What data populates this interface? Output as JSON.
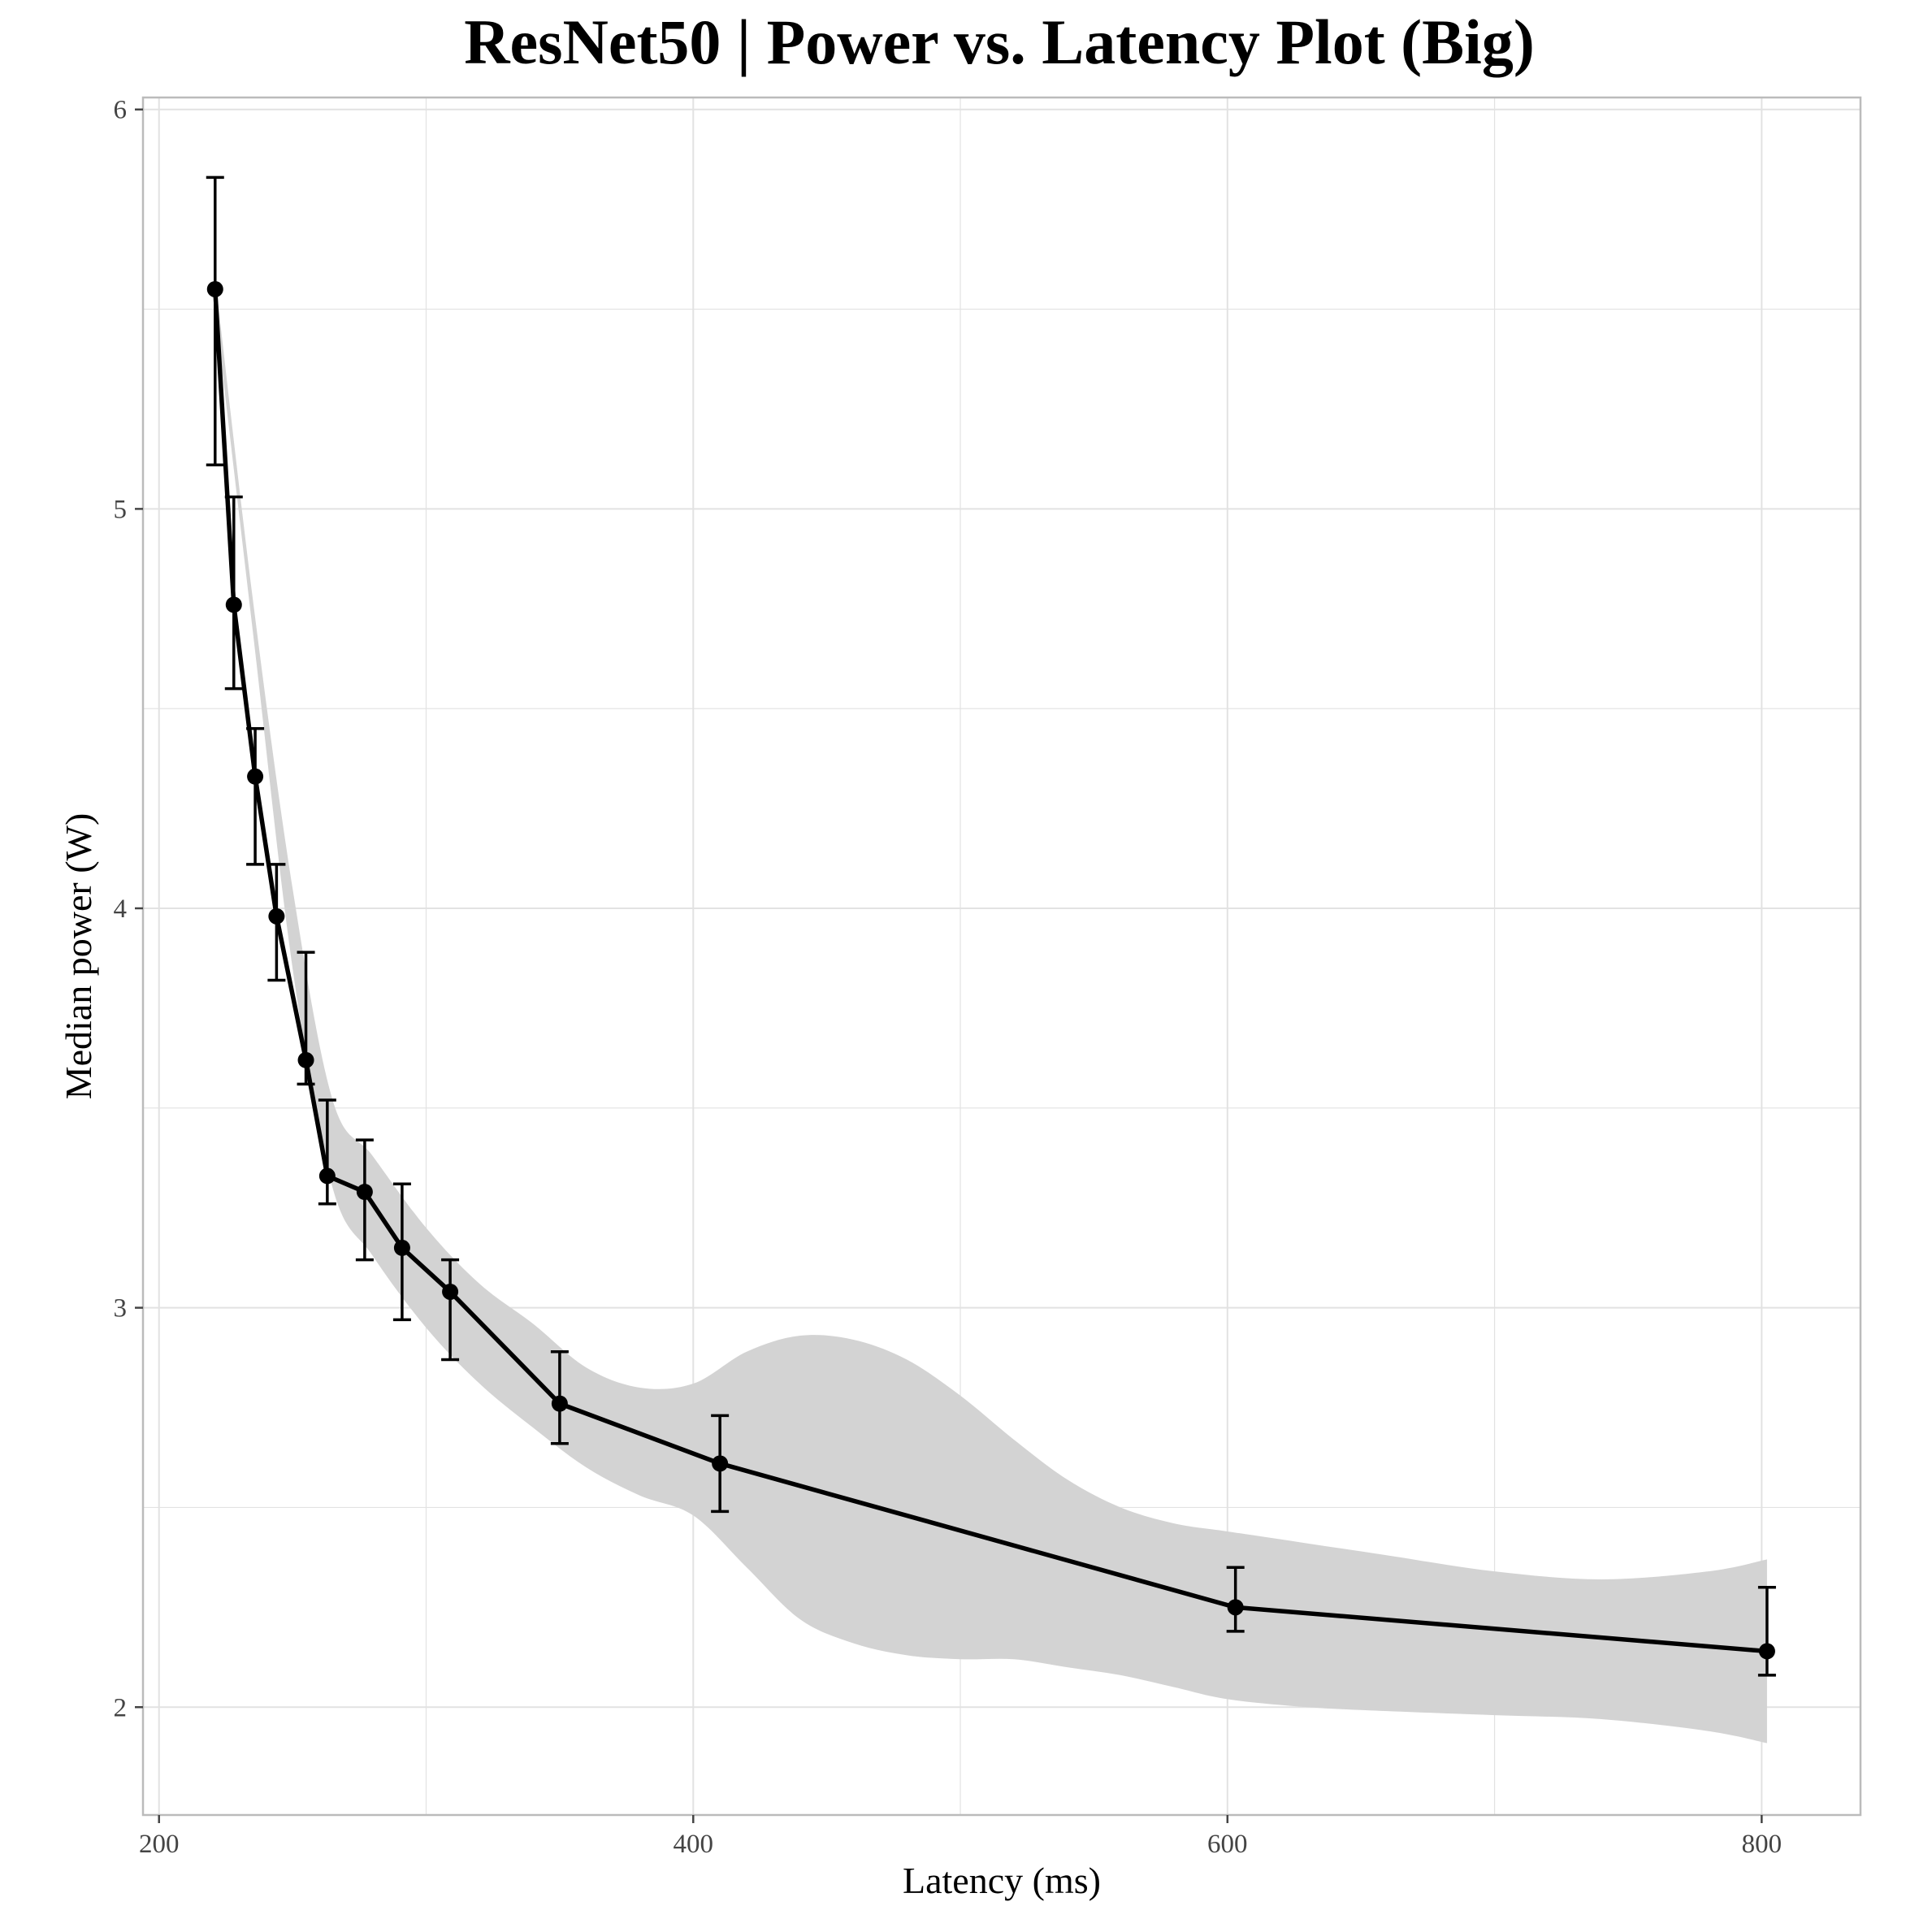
{
  "chart_data": {
    "type": "line",
    "title": "ResNet50 | Power vs. Latency Plot (Big)",
    "xlabel": "Latency (ms)",
    "ylabel": "Median power (W)",
    "xlim": [
      194,
      837
    ],
    "ylim": [
      1.73,
      6.03
    ],
    "x_ticks": [
      200,
      400,
      600,
      800
    ],
    "y_ticks": [
      2,
      3,
      4,
      5,
      6
    ],
    "x_tick_labels": [
      "200",
      "400",
      "600",
      "800"
    ],
    "y_tick_labels": [
      "2",
      "3",
      "4",
      "5",
      "6"
    ],
    "grid": true,
    "legend": "none",
    "colors": {
      "line": "#000000",
      "ribbon": "#d3d3d3",
      "grid": "#e2e2e2",
      "frame": "#bbbbbb"
    },
    "series": [
      {
        "points": [
          {
            "x": 221,
            "y": 5.55,
            "ymin": 5.11,
            "ymax": 5.83
          },
          {
            "x": 228,
            "y": 4.76,
            "ymin": 4.55,
            "ymax": 5.03
          },
          {
            "x": 236,
            "y": 4.33,
            "ymin": 4.11,
            "ymax": 4.45
          },
          {
            "x": 244,
            "y": 3.98,
            "ymin": 3.82,
            "ymax": 4.11
          },
          {
            "x": 255,
            "y": 3.62,
            "ymin": 3.56,
            "ymax": 3.89
          },
          {
            "x": 263,
            "y": 3.33,
            "ymin": 3.26,
            "ymax": 3.52
          },
          {
            "x": 277,
            "y": 3.29,
            "ymin": 3.12,
            "ymax": 3.42
          },
          {
            "x": 291,
            "y": 3.15,
            "ymin": 2.97,
            "ymax": 3.31
          },
          {
            "x": 309,
            "y": 3.04,
            "ymin": 2.87,
            "ymax": 3.12
          },
          {
            "x": 350,
            "y": 2.76,
            "ymin": 2.66,
            "ymax": 2.89
          },
          {
            "x": 410,
            "y": 2.61,
            "ymin": 2.49,
            "ymax": 2.73
          },
          {
            "x": 603,
            "y": 2.25,
            "ymin": 2.19,
            "ymax": 2.35
          },
          {
            "x": 802,
            "y": 2.14,
            "ymin": 2.08,
            "ymax": 2.3
          }
        ],
        "smooth_band": {
          "x": [
            221,
            235,
            250,
            265,
            280,
            300,
            320,
            340,
            360,
            380,
            400,
            420,
            440,
            460,
            480,
            500,
            520,
            540,
            560,
            580,
            600,
            630,
            660,
            700,
            740,
            780,
            802
          ],
          "upper": [
            5.58,
            4.78,
            4.05,
            3.52,
            3.38,
            3.2,
            3.06,
            2.96,
            2.85,
            2.8,
            2.81,
            2.89,
            2.93,
            2.92,
            2.87,
            2.78,
            2.67,
            2.57,
            2.5,
            2.46,
            2.44,
            2.41,
            2.38,
            2.34,
            2.32,
            2.34,
            2.37
          ],
          "lower": [
            5.5,
            4.7,
            3.85,
            3.3,
            3.13,
            2.95,
            2.81,
            2.7,
            2.6,
            2.53,
            2.48,
            2.35,
            2.22,
            2.16,
            2.13,
            2.12,
            2.12,
            2.1,
            2.08,
            2.05,
            2.02,
            2.0,
            1.99,
            1.98,
            1.97,
            1.94,
            1.91
          ]
        }
      }
    ]
  }
}
